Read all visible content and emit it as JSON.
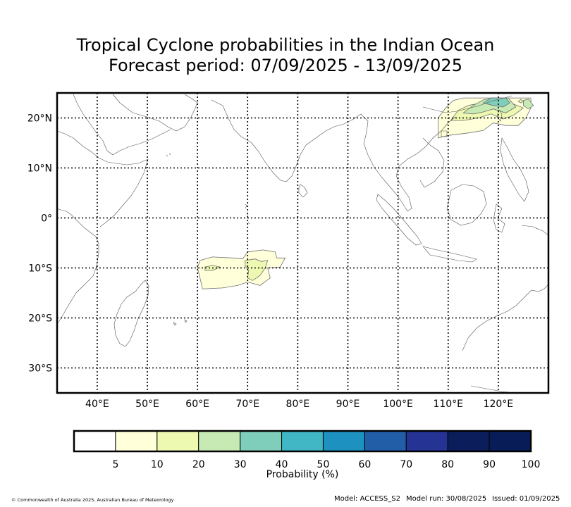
{
  "title_line1": "Tropical Cyclone probabilities in the Indian Ocean",
  "title_line2": "Forecast period: 07/09/2025 - 13/09/2025",
  "chart_data": {
    "type": "heatmap",
    "title": "Tropical Cyclone probabilities in the Indian Ocean",
    "subtitle": "Forecast period: 07/09/2025 - 13/09/2025",
    "xlim": [
      32,
      130
    ],
    "ylim": [
      -35,
      25
    ],
    "x_ticks": [
      40,
      50,
      60,
      70,
      80,
      90,
      100,
      110,
      120
    ],
    "x_tick_labels": [
      "40°E",
      "50°E",
      "60°E",
      "70°E",
      "80°E",
      "90°E",
      "100°E",
      "110°E",
      "120°E"
    ],
    "y_ticks": [
      20,
      10,
      0,
      -10,
      -20,
      -30
    ],
    "y_tick_labels": [
      "20°N",
      "10°N",
      "0°",
      "10°S",
      "20°S",
      "30°S"
    ],
    "grid": true,
    "colorbar": {
      "label": "Probability (%)",
      "tick_labels": [
        "5",
        "10",
        "20",
        "30",
        "40",
        "50",
        "60",
        "70",
        "80",
        "90",
        "100"
      ],
      "bounds": [
        0,
        5,
        10,
        20,
        30,
        40,
        50,
        60,
        70,
        80,
        90,
        100
      ],
      "colors": [
        "#ffffff",
        "#ffffd9",
        "#edf8b1",
        "#c7e9b4",
        "#7fcdbb",
        "#41b6c4",
        "#1d91c0",
        "#225ea8",
        "#253494",
        "#0c1d5c",
        "#081d58"
      ]
    },
    "regions": [
      {
        "level": 5,
        "outline": [
          [
            60.5,
            -8.5
          ],
          [
            63,
            -7.8
          ],
          [
            67,
            -8
          ],
          [
            69,
            -8.2
          ],
          [
            70,
            -6.8
          ],
          [
            73,
            -6.4
          ],
          [
            75.5,
            -6.8
          ],
          [
            75.8,
            -8
          ],
          [
            77.5,
            -8
          ],
          [
            76.5,
            -9.8
          ],
          [
            74,
            -10
          ],
          [
            74.5,
            -12
          ],
          [
            72.5,
            -13.5
          ],
          [
            70,
            -12.8
          ],
          [
            68,
            -13.5
          ],
          [
            65,
            -14
          ],
          [
            61,
            -14.2
          ],
          [
            60.5,
            -12
          ],
          [
            60,
            -10
          ]
        ]
      },
      {
        "level": 10,
        "outline": [
          [
            69.5,
            -8.5
          ],
          [
            71.5,
            -8.2
          ],
          [
            72.7,
            -8.7
          ],
          [
            74,
            -8.5
          ],
          [
            73.5,
            -10
          ],
          [
            72.5,
            -11.5
          ],
          [
            71,
            -12.5
          ],
          [
            70,
            -12
          ],
          [
            70.2,
            -10.5
          ],
          [
            69.5,
            -9.5
          ]
        ]
      },
      {
        "level": 10,
        "outline": [
          [
            61.5,
            -9.8
          ],
          [
            63,
            -9.5
          ],
          [
            64.5,
            -9.8
          ],
          [
            63,
            -10.5
          ],
          [
            61.5,
            -10.5
          ]
        ]
      },
      {
        "level": 5,
        "outline": [
          [
            108,
            16
          ],
          [
            108,
            20
          ],
          [
            109.5,
            22
          ],
          [
            111,
            23.5
          ],
          [
            113,
            24
          ],
          [
            116,
            24
          ],
          [
            119,
            24
          ],
          [
            121,
            24
          ],
          [
            123,
            24
          ],
          [
            125,
            24
          ],
          [
            126.5,
            24
          ],
          [
            126.5,
            22
          ],
          [
            125.5,
            20
          ],
          [
            124,
            18.5
          ],
          [
            121.5,
            18.5
          ],
          [
            119,
            19
          ],
          [
            117,
            17.5
          ],
          [
            114,
            17
          ],
          [
            110,
            16.5
          ]
        ]
      },
      {
        "level": 10,
        "outline": [
          [
            110.5,
            19.5
          ],
          [
            112,
            21.5
          ],
          [
            114,
            22.5
          ],
          [
            116.5,
            23
          ],
          [
            119,
            23.2
          ],
          [
            121,
            23
          ],
          [
            123,
            22.8
          ],
          [
            125,
            22
          ],
          [
            123,
            20.5
          ],
          [
            121,
            19.8
          ],
          [
            118.5,
            20.8
          ],
          [
            116,
            20
          ],
          [
            113,
            19.5
          ]
        ]
      },
      {
        "level": 20,
        "outline": [
          [
            113,
            21
          ],
          [
            115,
            22.5
          ],
          [
            117,
            23.6
          ],
          [
            118.8,
            24
          ],
          [
            122,
            24
          ],
          [
            123.5,
            22.2
          ],
          [
            121.5,
            21
          ],
          [
            119,
            21.8
          ],
          [
            117,
            21.2
          ],
          [
            115,
            20.8
          ]
        ]
      },
      {
        "level": 30,
        "outline": [
          [
            117,
            23
          ],
          [
            118.5,
            24
          ],
          [
            121.5,
            24
          ],
          [
            122.3,
            23
          ],
          [
            121,
            22.2
          ],
          [
            119,
            22.5
          ]
        ]
      },
      {
        "level": 20,
        "outline": [
          [
            125,
            22.5
          ],
          [
            126,
            21.8
          ],
          [
            127,
            22.5
          ],
          [
            126,
            23.8
          ],
          [
            125,
            23.5
          ]
        ]
      },
      {
        "level": 10,
        "outline": [
          [
            124,
            23.3
          ],
          [
            124.5,
            23
          ],
          [
            125,
            23.3
          ],
          [
            124.5,
            23.7
          ]
        ]
      }
    ]
  },
  "footer": {
    "copyright": "© Commonwealth of Australia 2025, Australian Bureau of Meteorology",
    "model": "Model: ACCESS_S2",
    "model_run": "Model run: 30/08/2025",
    "issued": "Issued: 01/09/2025"
  }
}
